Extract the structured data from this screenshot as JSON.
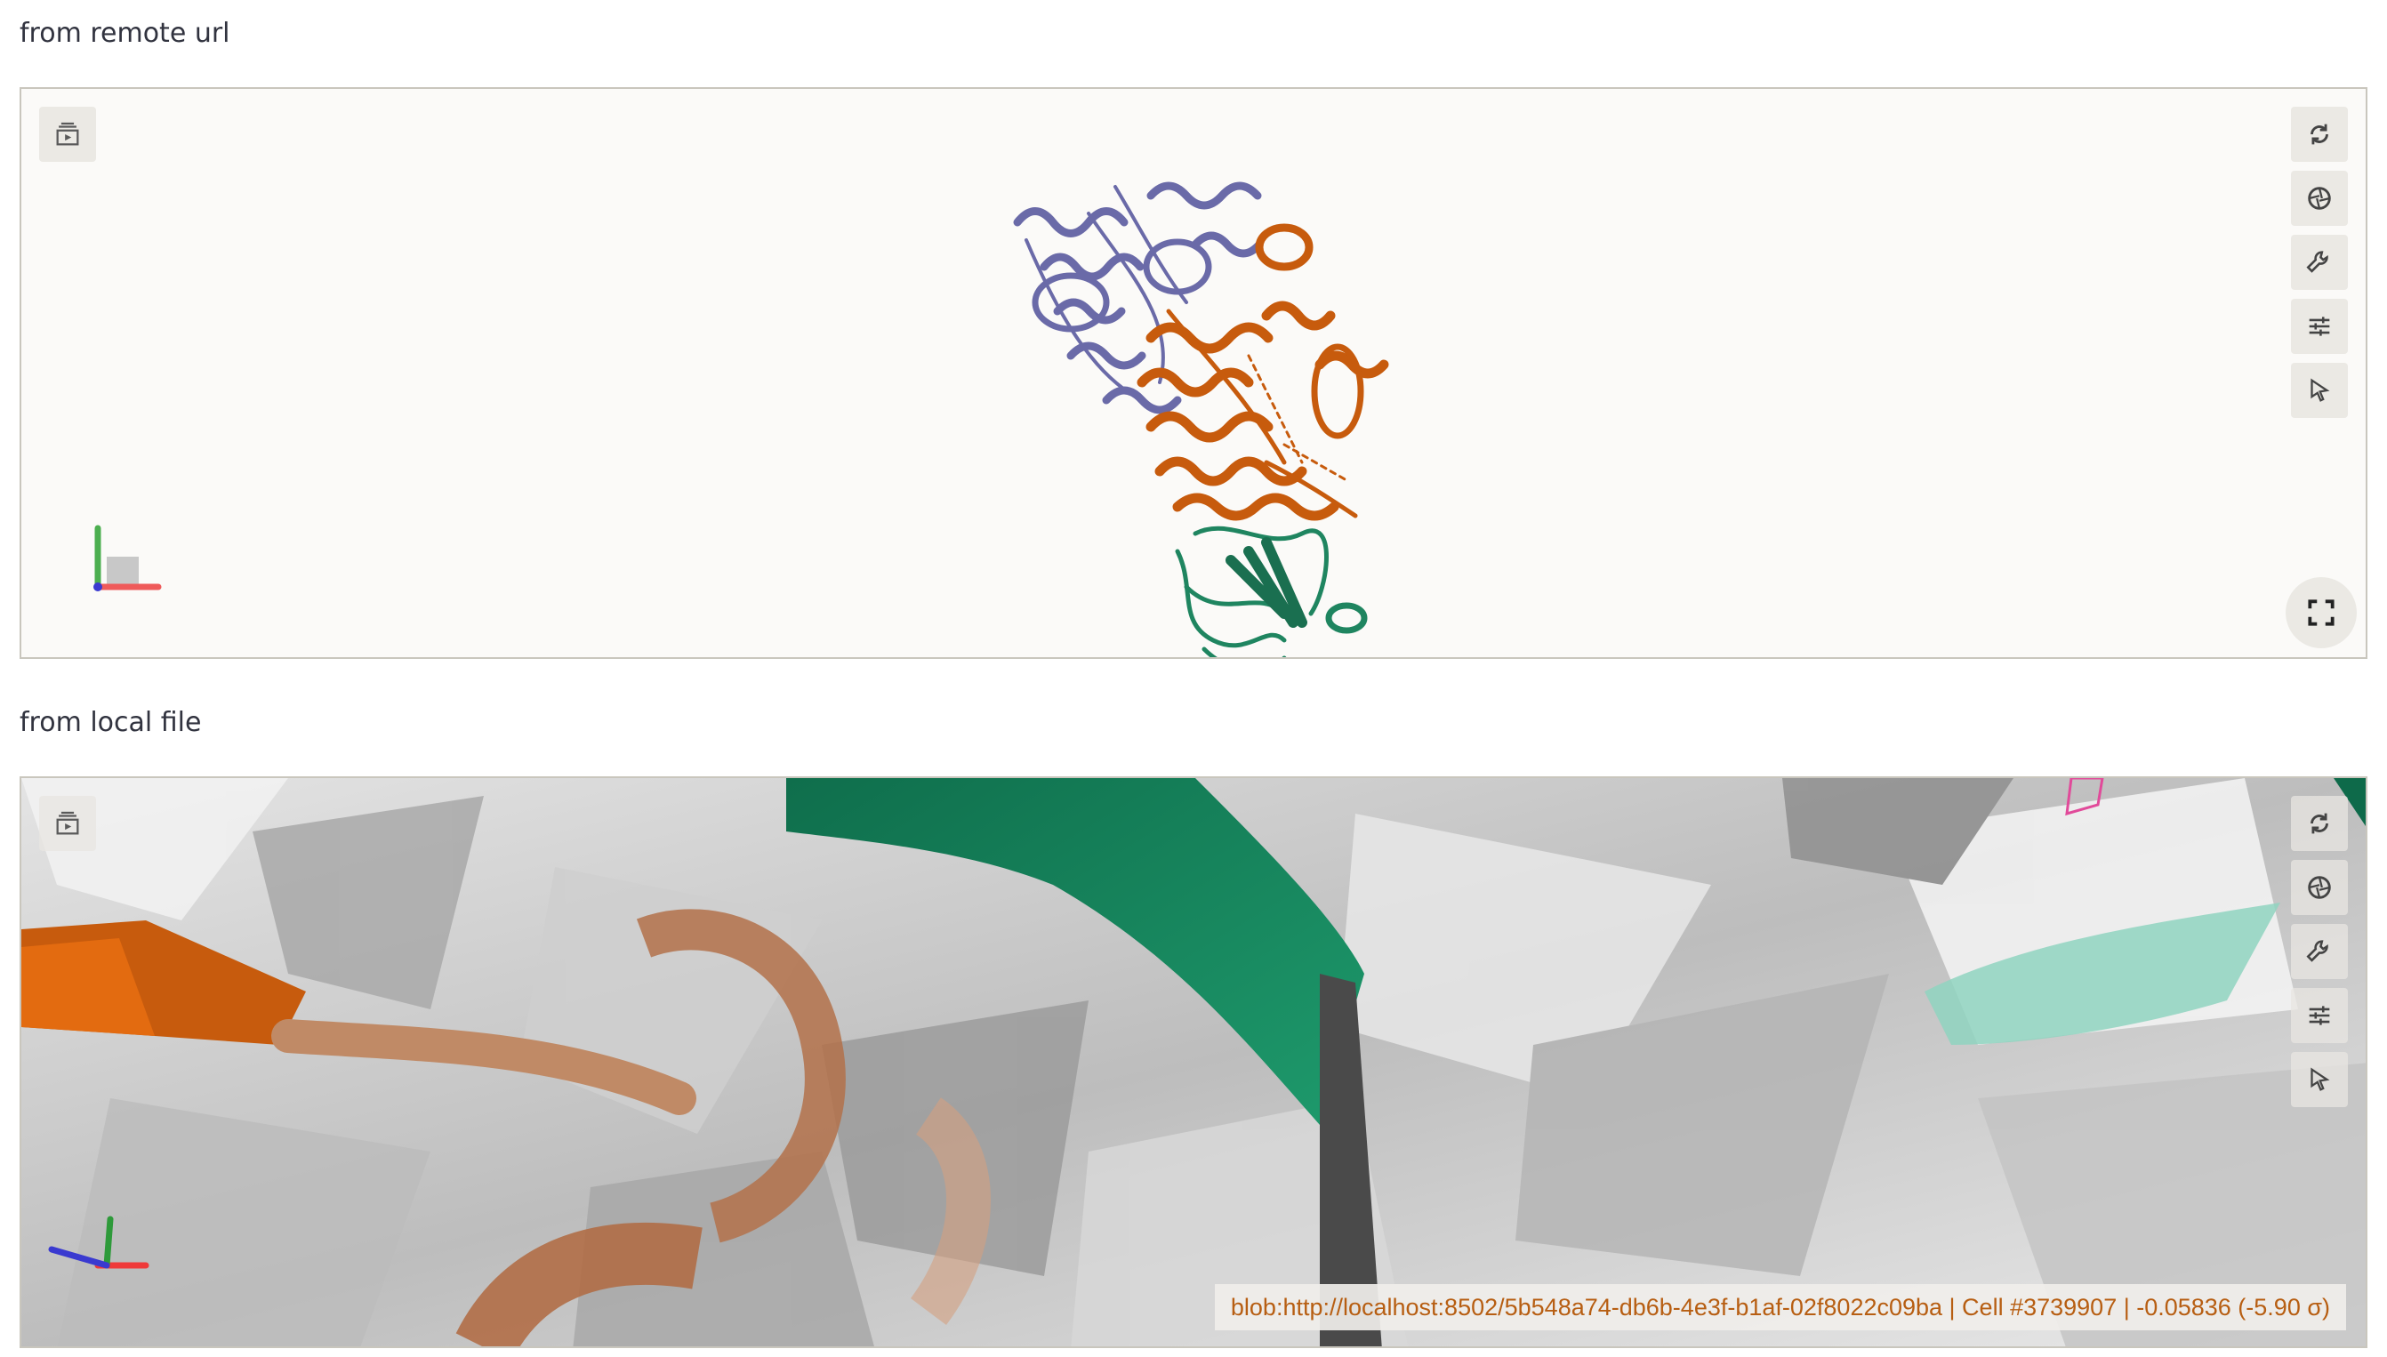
{
  "sections": {
    "remote": {
      "label": "from remote url"
    },
    "local": {
      "label": "from local file"
    }
  },
  "viewer": {
    "controls": [
      {
        "name": "reset-view",
        "icon": "rotate-icon"
      },
      {
        "name": "screenshot",
        "icon": "aperture-icon"
      },
      {
        "name": "tools",
        "icon": "wrench-icon"
      },
      {
        "name": "settings",
        "icon": "sliders-icon"
      },
      {
        "name": "selection-mode",
        "icon": "cursor-icon"
      }
    ],
    "left_toggle_icon": "layers-play-icon",
    "fullscreen_icon": "expand-icon"
  },
  "local_viewer": {
    "status_text": "blob:http://localhost:8502/5b548a74-db6b-4e3f-b1af-02f8022c09ba | Cell #3739907 | -0.05836 (-5.90 σ)"
  },
  "colors": {
    "chain_a": "#6a6aa8",
    "chain_b": "#c75b0d",
    "chain_c": "#1f8560",
    "accent_text": "#b75e12",
    "axis_x": "#ef5a5a",
    "axis_y": "#4caf50",
    "axis_z": "#3a3ad0"
  }
}
